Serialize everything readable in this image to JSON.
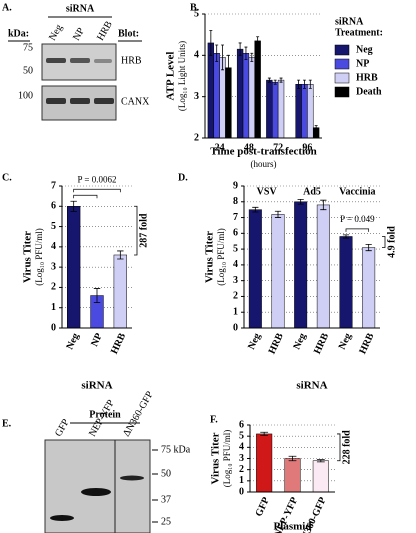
{
  "blots": [
    {
      "panel": "A.",
      "header": "siRNA",
      "kda_label": "kDa:",
      "blot_label": "Blot:",
      "lanes": [
        "Neg",
        "NP",
        "HRB"
      ],
      "markers": [
        "75",
        "50",
        "100"
      ],
      "rows": [
        "HRB",
        "CANX"
      ]
    },
    {
      "panel": "E.",
      "header": "Protein",
      "lanes": [
        "GFP",
        "NEP-YFP",
        "ΔN360-GFP"
      ],
      "markers": [
        "75 kDa",
        "50",
        "37",
        "25"
      ]
    }
  ],
  "chart_data": [
    {
      "type": "bar",
      "panel": "B.",
      "ylabel": "ATP Level",
      "ylabel_units": "(Log₁₀ Light Units)",
      "xlabel": "Time post-transfection",
      "xlabel_units": "(hours)",
      "legend_title": [
        "siRNA",
        "Treatment:"
      ],
      "categories": [
        "24",
        "48",
        "72",
        "96"
      ],
      "series": [
        {
          "name": "Neg",
          "color": "#16166e",
          "values": [
            4.3,
            4.15,
            3.4,
            3.3
          ],
          "errors": [
            0.3,
            0.15,
            0.05,
            0.1
          ]
        },
        {
          "name": "NP",
          "color": "#4a4ae0",
          "values": [
            4.05,
            4.05,
            3.35,
            3.3
          ],
          "errors": [
            0.2,
            0.15,
            0.05,
            0.1
          ]
        },
        {
          "name": "HRB",
          "color": "#cfcff5",
          "values": [
            3.95,
            3.95,
            3.4,
            3.3
          ],
          "errors": [
            0.3,
            0.1,
            0.05,
            0.1
          ]
        },
        {
          "name": "Death",
          "color": "#000000",
          "values": [
            3.7,
            4.35,
            null,
            2.25
          ],
          "errors": [
            0.3,
            0.1,
            null,
            0.05
          ]
        }
      ],
      "ylim": [
        2,
        5
      ],
      "yticks": [
        2,
        3,
        4,
        5
      ],
      "grid": true
    },
    {
      "type": "bar",
      "panel": "C.",
      "ylabel": "Virus Titer",
      "ylabel_units": "(Log₁₀ PFU/ml)",
      "xlabel": "siRNA",
      "categories": [
        "Neg",
        "NP",
        "HRB"
      ],
      "values": [
        6.0,
        1.6,
        3.6
      ],
      "errors": [
        0.25,
        0.35,
        0.2
      ],
      "colors": [
        "#16166e",
        "#4a4ae0",
        "#cfcff5"
      ],
      "p_value_label": "P = 0.0062",
      "fold_label": "287 fold",
      "ylim": [
        0,
        7
      ],
      "yticks": [
        0,
        1,
        2,
        3,
        4,
        5,
        6,
        7
      ],
      "grid": true
    },
    {
      "type": "bar",
      "panel": "D.",
      "ylabel": "Virus Titer",
      "ylabel_units": "(Log₁₀ PFU/ml)",
      "xlabel": "siRNA",
      "groups": [
        "VSV",
        "Ad5",
        "Vaccinia"
      ],
      "categories": [
        "Neg",
        "HRB",
        "Neg",
        "HRB",
        "Neg",
        "HRB"
      ],
      "values": [
        7.5,
        7.2,
        8.0,
        7.8,
        5.8,
        5.1
      ],
      "errors": [
        0.15,
        0.2,
        0.15,
        0.3,
        0.1,
        0.2
      ],
      "colors": [
        "#16166e",
        "#cfcff5",
        "#16166e",
        "#cfcff5",
        "#16166e",
        "#cfcff5"
      ],
      "p_value_label": "P = 0.049",
      "fold_label": "4.9 fold",
      "ylim": [
        0,
        9
      ],
      "yticks": [
        0,
        1,
        2,
        3,
        4,
        5,
        6,
        7,
        8,
        9
      ],
      "grid": true
    },
    {
      "type": "bar",
      "panel": "F.",
      "ylabel": "Virus Titer",
      "ylabel_units": "(Log₁₀ PFU/ml)",
      "xlabel": "Plasmid",
      "categories": [
        "GFP",
        "NEP-YFP",
        "ΔN360-GFP"
      ],
      "values": [
        5.2,
        3.0,
        2.8
      ],
      "errors": [
        0.15,
        0.2,
        0.1
      ],
      "colors": [
        "#d01818",
        "#e07a7a",
        "#fbeaf4"
      ],
      "fold_label": "228 fold",
      "ylim": [
        0,
        6
      ],
      "yticks": [
        0,
        1,
        2,
        3,
        4,
        5,
        6
      ],
      "grid": true
    }
  ]
}
